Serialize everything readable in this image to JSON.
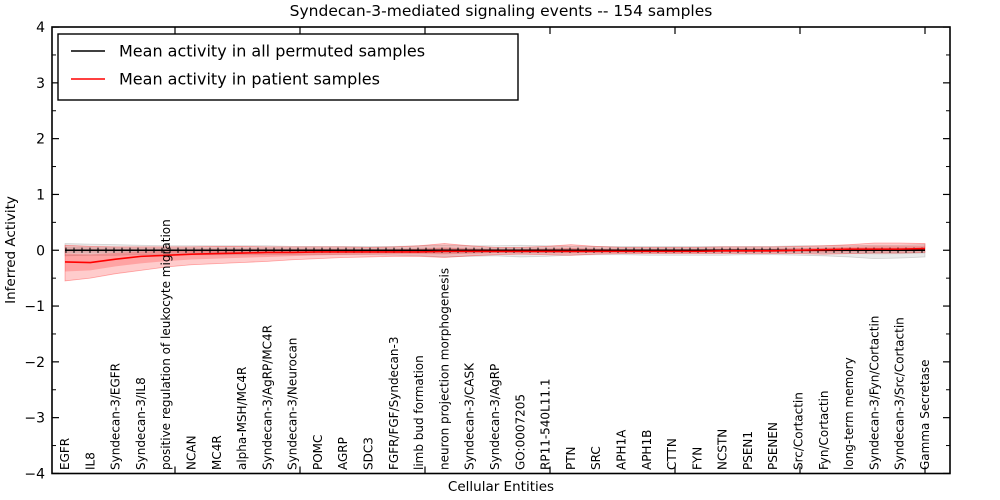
{
  "figure": {
    "title": "Syndecan-3-mediated signaling events -- 154 samples",
    "sample_count": "154"
  },
  "chart_data": {
    "type": "line",
    "title": "Syndecan-3-mediated signaling events -- 154 samples",
    "xlabel": "Cellular Entities",
    "ylabel": "Inferred Activity",
    "ylim": [
      -4,
      4
    ],
    "y_tick_values": [
      4,
      3,
      2,
      1,
      0,
      -1,
      -2,
      -3,
      -4
    ],
    "y_tick_labels": [
      "4",
      "3",
      "2",
      "1",
      "0",
      "−1",
      "−2",
      "−3",
      "−4"
    ],
    "grid": false,
    "legend_position": "upper left",
    "categories": [
      "EGFR",
      "IL8",
      "Syndecan-3/EGFR",
      "Syndecan-3/IL8",
      "positive regulation of leukocyte migration",
      "NCAN",
      "MC4R",
      "alpha-MSH/MC4R",
      "Syndecan-3/AgRP/MC4R",
      "Syndecan-3/Neurocan",
      "POMC",
      "AGRP",
      "SDC3",
      "FGFR/FGF/Syndecan-3",
      "limb bud formation",
      "neuron projection morphogenesis",
      "Syndecan-3/CASK",
      "Syndecan-3/AgRP",
      "GO:0007205",
      "RP11-540L11.1",
      "PTN",
      "SRC",
      "APH1A",
      "APH1B",
      "CTTN",
      "FYN",
      "NCSTN",
      "PSEN1",
      "PSENEN",
      "Src/Cortactin",
      "Fyn/Cortactin",
      "long-term memory",
      "Syndecan-3/Fyn/Cortactin",
      "Syndecan-3/Src/Cortactin",
      "Gamma Secretase"
    ],
    "series": [
      {
        "name": "Mean activity in all permuted samples",
        "color": "#000000",
        "band_color": "#555555",
        "band_opacity": 0.13,
        "values": [
          0,
          0,
          0,
          0,
          0,
          0,
          0,
          0,
          0,
          0,
          0,
          0,
          0,
          0,
          0,
          0,
          0,
          0,
          0,
          0,
          0,
          0,
          0,
          0,
          0,
          0,
          0,
          0,
          0,
          0,
          0,
          0,
          0,
          0,
          0
        ],
        "band_upper": [
          0.12,
          0.11,
          0.1,
          0.09,
          0.08,
          0.08,
          0.08,
          0.08,
          0.08,
          0.07,
          0.07,
          0.07,
          0.07,
          0.07,
          0.08,
          0.09,
          0.08,
          0.08,
          0.09,
          0.08,
          0.07,
          0.07,
          0.07,
          0.07,
          0.07,
          0.07,
          0.07,
          0.07,
          0.07,
          0.08,
          0.08,
          0.08,
          0.09,
          0.09,
          0.1
        ],
        "band_lower": [
          -0.1,
          -0.09,
          -0.09,
          -0.08,
          -0.08,
          -0.08,
          -0.08,
          -0.08,
          -0.08,
          -0.08,
          -0.08,
          -0.08,
          -0.08,
          -0.09,
          -0.1,
          -0.12,
          -0.11,
          -0.1,
          -0.12,
          -0.11,
          -0.09,
          -0.08,
          -0.08,
          -0.09,
          -0.09,
          -0.09,
          -0.09,
          -0.08,
          -0.08,
          -0.09,
          -0.1,
          -0.12,
          -0.15,
          -0.14,
          -0.12
        ]
      },
      {
        "name": "Mean activity in patient samples",
        "color": "#ff0000",
        "band_color": "#ff0000",
        "band_opacity": 0.2,
        "values": [
          -0.21,
          -0.22,
          -0.16,
          -0.11,
          -0.09,
          -0.07,
          -0.06,
          -0.05,
          -0.04,
          -0.04,
          -0.03,
          -0.03,
          -0.03,
          -0.03,
          -0.03,
          -0.02,
          -0.02,
          -0.02,
          -0.02,
          -0.02,
          -0.02,
          -0.02,
          -0.02,
          -0.02,
          -0.02,
          -0.02,
          -0.01,
          -0.01,
          -0.01,
          0.0,
          0.01,
          0.02,
          0.02,
          0.02,
          0.03
        ],
        "band_upper": [
          0.09,
          0.07,
          0.06,
          0.06,
          0.06,
          0.06,
          0.07,
          0.07,
          0.06,
          0.06,
          0.06,
          0.06,
          0.05,
          0.06,
          0.08,
          0.12,
          0.08,
          0.05,
          0.05,
          0.07,
          0.1,
          0.07,
          0.05,
          0.05,
          0.05,
          0.05,
          0.06,
          0.06,
          0.06,
          0.07,
          0.08,
          0.1,
          0.13,
          0.13,
          0.12
        ],
        "band_lower": [
          -0.55,
          -0.5,
          -0.42,
          -0.36,
          -0.3,
          -0.26,
          -0.24,
          -0.22,
          -0.2,
          -0.17,
          -0.15,
          -0.13,
          -0.12,
          -0.11,
          -0.11,
          -0.13,
          -0.1,
          -0.08,
          -0.07,
          -0.08,
          -0.09,
          -0.07,
          -0.06,
          -0.06,
          -0.06,
          -0.06,
          -0.06,
          -0.06,
          -0.06,
          -0.06,
          -0.07,
          -0.06,
          -0.05,
          -0.05,
          -0.04
        ]
      }
    ]
  }
}
